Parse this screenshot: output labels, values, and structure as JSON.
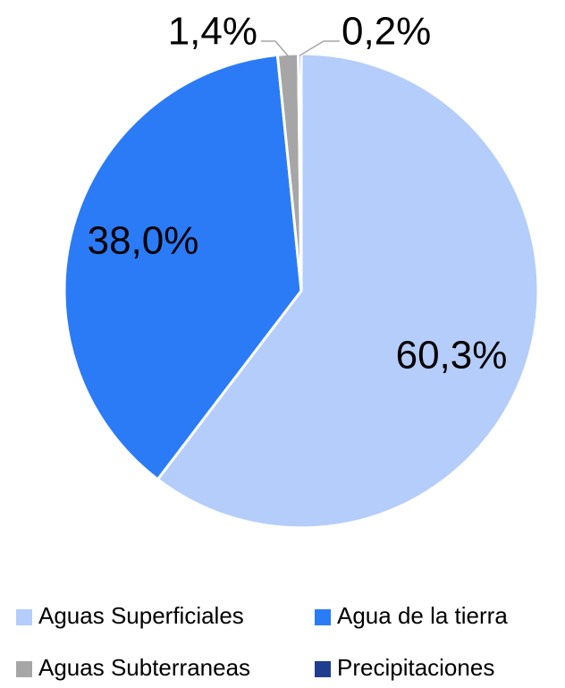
{
  "chart_data": {
    "type": "pie",
    "categories": [
      "Aguas Superficiales",
      "Agua de la tierra",
      "Aguas Subterraneas",
      "Precipitaciones"
    ],
    "values": [
      60.3,
      38.0,
      1.4,
      0.2
    ],
    "value_labels": [
      "60,3%",
      "38,0%",
      "1,4%",
      "0,2%"
    ],
    "colors": [
      "#b4cdfa",
      "#2b7bf7",
      "#a6a6a6",
      "#1f3e8f"
    ],
    "legend": "bottom"
  }
}
